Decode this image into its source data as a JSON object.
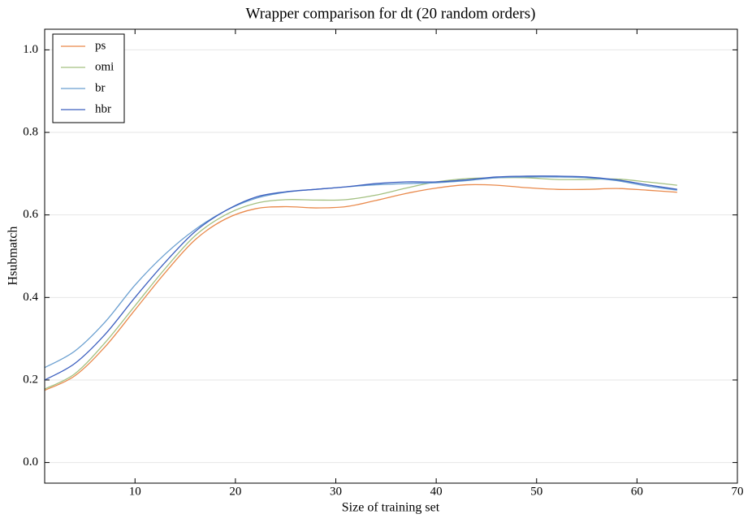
{
  "chart_data": {
    "type": "line",
    "title": "Wrapper comparison for dt (20 random orders)",
    "x_label": "Size of training set",
    "y_label": "Hsubmatch",
    "x": [
      1,
      4,
      7,
      10,
      13,
      16,
      19,
      22,
      25,
      28,
      31,
      34,
      37,
      40,
      43,
      46,
      49,
      52,
      55,
      58,
      61,
      64
    ],
    "series": [
      {
        "name": "ps",
        "color": "#e9894b",
        "values": [
          0.175,
          0.21,
          0.28,
          0.37,
          0.46,
          0.54,
          0.59,
          0.615,
          0.62,
          0.617,
          0.62,
          0.635,
          0.652,
          0.665,
          0.673,
          0.672,
          0.666,
          0.662,
          0.662,
          0.664,
          0.66,
          0.655
        ]
      },
      {
        "name": "omi",
        "color": "#a3c080",
        "values": [
          0.178,
          0.215,
          0.29,
          0.38,
          0.47,
          0.55,
          0.6,
          0.628,
          0.637,
          0.636,
          0.637,
          0.648,
          0.665,
          0.68,
          0.688,
          0.69,
          0.69,
          0.686,
          0.686,
          0.687,
          0.68,
          0.672
        ]
      },
      {
        "name": "br",
        "color": "#6a9fd0",
        "values": [
          0.23,
          0.27,
          0.34,
          0.43,
          0.505,
          0.565,
          0.61,
          0.64,
          0.655,
          0.662,
          0.668,
          0.673,
          0.676,
          0.678,
          0.683,
          0.69,
          0.692,
          0.692,
          0.69,
          0.683,
          0.67,
          0.66
        ]
      },
      {
        "name": "hbr",
        "color": "#3c5fbf",
        "values": [
          0.2,
          0.24,
          0.31,
          0.4,
          0.485,
          0.56,
          0.61,
          0.643,
          0.656,
          0.662,
          0.668,
          0.676,
          0.68,
          0.68,
          0.685,
          0.692,
          0.694,
          0.694,
          0.692,
          0.685,
          0.673,
          0.662
        ]
      }
    ],
    "xlim": [
      1,
      70
    ],
    "xticks": [
      10,
      20,
      30,
      40,
      50,
      60,
      70
    ],
    "ylim": [
      -0.05,
      1.05
    ],
    "yticks": [
      {
        "value": 0,
        "label": "0.0"
      },
      0.2,
      0.4,
      0.6,
      0.8,
      {
        "value": 1,
        "label": "1.0"
      }
    ],
    "grid": true,
    "legend": "upper left"
  }
}
